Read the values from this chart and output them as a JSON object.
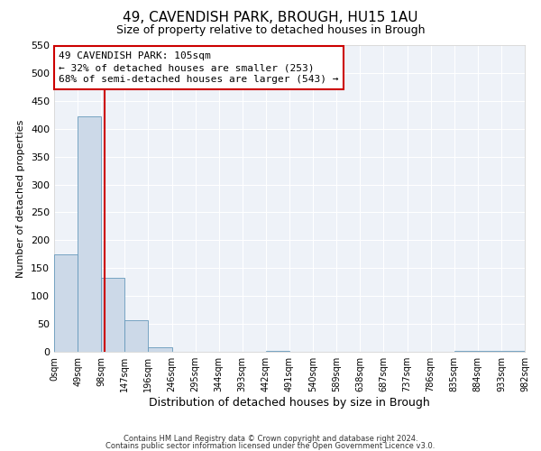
{
  "title": "49, CAVENDISH PARK, BROUGH, HU15 1AU",
  "subtitle": "Size of property relative to detached houses in Brough",
  "xlabel": "Distribution of detached houses by size in Brough",
  "ylabel": "Number of detached properties",
  "bar_values": [
    175,
    422,
    133,
    57,
    8,
    0,
    0,
    0,
    0,
    2,
    0,
    0,
    0,
    0,
    0,
    0,
    0,
    2
  ],
  "bin_edges": [
    0,
    49,
    98,
    147,
    196,
    245,
    294,
    343,
    392,
    441,
    490,
    539,
    588,
    637,
    686,
    735,
    784,
    833,
    982
  ],
  "tick_labels": [
    "0sqm",
    "49sqm",
    "98sqm",
    "147sqm",
    "196sqm",
    "246sqm",
    "295sqm",
    "344sqm",
    "393sqm",
    "442sqm",
    "491sqm",
    "540sqm",
    "589sqm",
    "638sqm",
    "687sqm",
    "737sqm",
    "786sqm",
    "835sqm",
    "884sqm",
    "933sqm",
    "982sqm"
  ],
  "vline_x": 105,
  "ylim": [
    0,
    550
  ],
  "yticks": [
    0,
    50,
    100,
    150,
    200,
    250,
    300,
    350,
    400,
    450,
    500,
    550
  ],
  "bar_color": "#ccd9e8",
  "bar_edge_color": "#6699bb",
  "vline_color": "#cc0000",
  "annotation_title": "49 CAVENDISH PARK: 105sqm",
  "annotation_line1": "← 32% of detached houses are smaller (253)",
  "annotation_line2": "68% of semi-detached houses are larger (543) →",
  "footer1": "Contains HM Land Registry data © Crown copyright and database right 2024.",
  "footer2": "Contains public sector information licensed under the Open Government Licence v3.0.",
  "bg_color": "#ffffff",
  "plot_bg_color": "#eef2f8",
  "grid_color": "#ffffff",
  "title_fontsize": 11,
  "subtitle_fontsize": 9,
  "xlabel_fontsize": 9,
  "ylabel_fontsize": 8,
  "tick_fontsize": 7,
  "footer_fontsize": 6,
  "annotation_fontsize": 8
}
